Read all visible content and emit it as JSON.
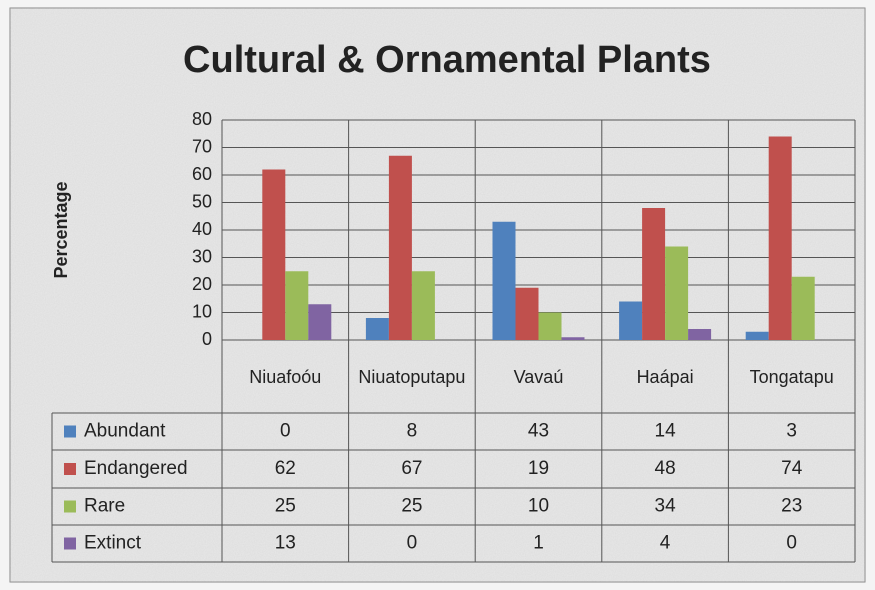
{
  "chart_data": {
    "type": "bar",
    "title": "Cultural & Ornamental Plants",
    "y_label": "Percentage",
    "categories": [
      "Niuafoóu",
      "Niuatoputapu",
      "Vavaú",
      "Haápai",
      "Tongatapu"
    ],
    "series": [
      {
        "name": "Abundant",
        "color": "#4f81bd",
        "values": [
          0,
          8,
          43,
          14,
          3
        ]
      },
      {
        "name": "Endangered",
        "color": "#c0504d",
        "values": [
          62,
          67,
          19,
          48,
          74
        ]
      },
      {
        "name": "Rare",
        "color": "#9bbb59",
        "values": [
          25,
          25,
          10,
          34,
          23
        ]
      },
      {
        "name": "Extinct",
        "color": "#8064a2",
        "values": [
          13,
          0,
          1,
          4,
          0
        ]
      }
    ],
    "ylim": [
      0,
      80
    ],
    "yticks": [
      0,
      10,
      20,
      30,
      40,
      50,
      60,
      70,
      80
    ],
    "grid": true
  }
}
